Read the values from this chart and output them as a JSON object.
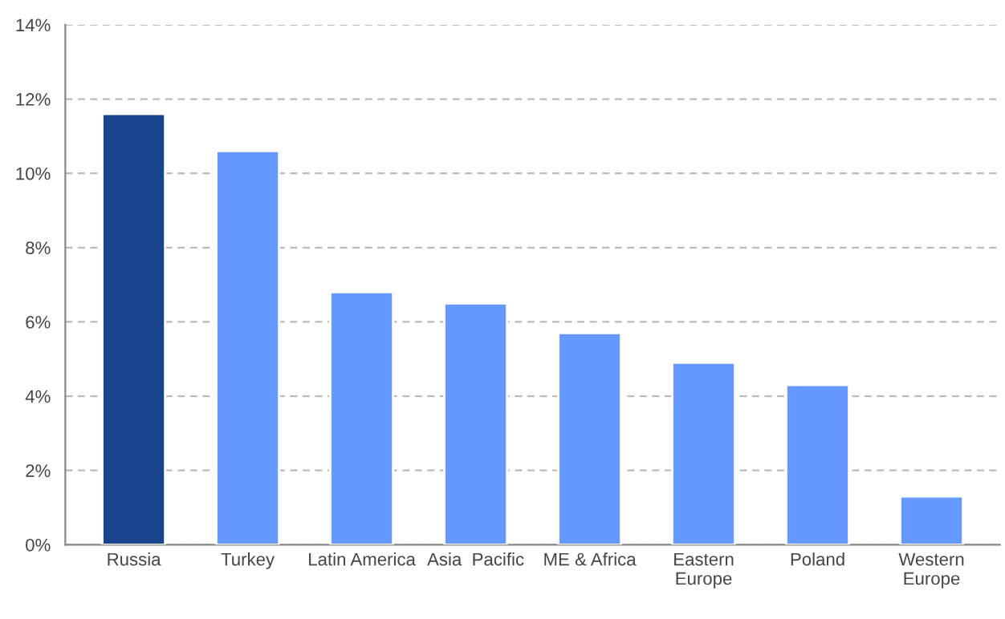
{
  "chart_data": {
    "type": "bar",
    "categories": [
      "Russia",
      "Turkey",
      "Latin America",
      "Asia  Pacific",
      "ME & Africa",
      "Eastern\nEurope",
      "Poland",
      "Western\nEurope"
    ],
    "values": [
      11.6,
      10.6,
      6.8,
      6.5,
      5.7,
      4.9,
      4.3,
      1.3
    ],
    "colors": [
      "#17448c",
      "#6699ff",
      "#6699ff",
      "#6699ff",
      "#6699ff",
      "#6699ff",
      "#6699ff",
      "#6699ff"
    ],
    "ylim": [
      0,
      14
    ],
    "yticks": [
      {
        "value": 0,
        "label": "0%"
      },
      {
        "value": 2,
        "label": "2%"
      },
      {
        "value": 4,
        "label": "4%"
      },
      {
        "value": 6,
        "label": "6%"
      },
      {
        "value": 8,
        "label": "8%"
      },
      {
        "value": 10,
        "label": "10%"
      },
      {
        "value": 12,
        "label": "12%"
      },
      {
        "value": 14,
        "label": "14%"
      }
    ],
    "grid": "y",
    "legend": false
  }
}
